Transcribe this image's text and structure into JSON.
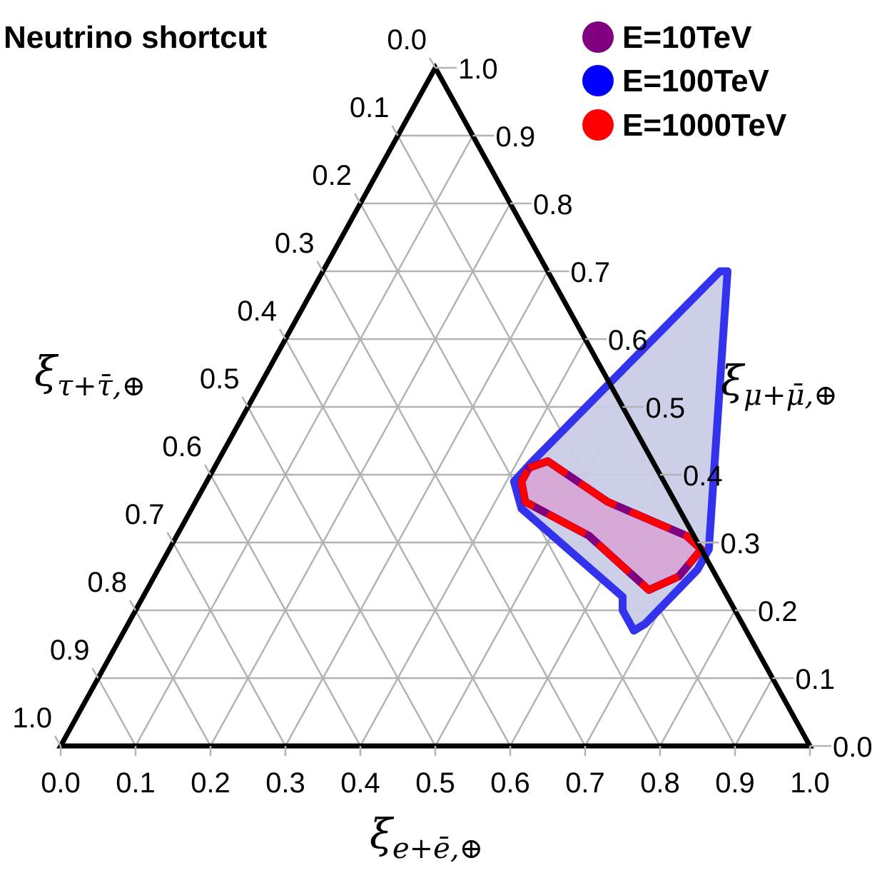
{
  "chart_data": {
    "type": "ternary",
    "title": "Neutrino shortcut",
    "axes": {
      "bottom": {
        "label_main": "ξ",
        "label_sub": "e+ē,⊕"
      },
      "right": {
        "label_main": "ξ",
        "label_sub": "μ+μ̄,⊕"
      },
      "left": {
        "label_main": "ξ",
        "label_sub": "τ+τ̄,⊕"
      }
    },
    "ticks": [
      "0.0",
      "0.1",
      "0.2",
      "0.3",
      "0.4",
      "0.5",
      "0.6",
      "0.7",
      "0.8",
      "0.9",
      "1.0"
    ],
    "grid": true,
    "legend_position": "top-right",
    "series": [
      {
        "name": "E=10TeV",
        "color": "#800080",
        "fill": "#d6a7d6",
        "style": "solid",
        "region": [
          [
            0.42,
            0.41
          ],
          [
            0.44,
            0.42
          ],
          [
            0.55,
            0.36
          ],
          [
            0.68,
            0.31
          ],
          [
            0.71,
            0.29
          ],
          [
            0.7,
            0.25
          ],
          [
            0.67,
            0.23
          ],
          [
            0.55,
            0.31
          ],
          [
            0.44,
            0.36
          ],
          [
            0.42,
            0.39
          ]
        ]
      },
      {
        "name": "E=100TeV",
        "color": "#3333ee",
        "fill": "#c9cce6",
        "style": "solid",
        "region": [
          [
            0.42,
            0.42
          ],
          [
            0.53,
            0.7
          ],
          [
            0.54,
            0.7
          ],
          [
            0.72,
            0.29
          ],
          [
            0.72,
            0.26
          ],
          [
            0.69,
            0.18
          ],
          [
            0.68,
            0.17
          ],
          [
            0.65,
            0.2
          ],
          [
            0.64,
            0.22
          ],
          [
            0.44,
            0.35
          ],
          [
            0.41,
            0.39
          ]
        ]
      },
      {
        "name": "E=1000TeV",
        "color": "#ff0000",
        "fill": "none",
        "style": "dashed",
        "region": [
          [
            0.42,
            0.41
          ],
          [
            0.44,
            0.42
          ],
          [
            0.55,
            0.36
          ],
          [
            0.68,
            0.31
          ],
          [
            0.71,
            0.29
          ],
          [
            0.7,
            0.25
          ],
          [
            0.67,
            0.23
          ],
          [
            0.55,
            0.31
          ],
          [
            0.44,
            0.36
          ],
          [
            0.42,
            0.39
          ]
        ]
      }
    ]
  }
}
